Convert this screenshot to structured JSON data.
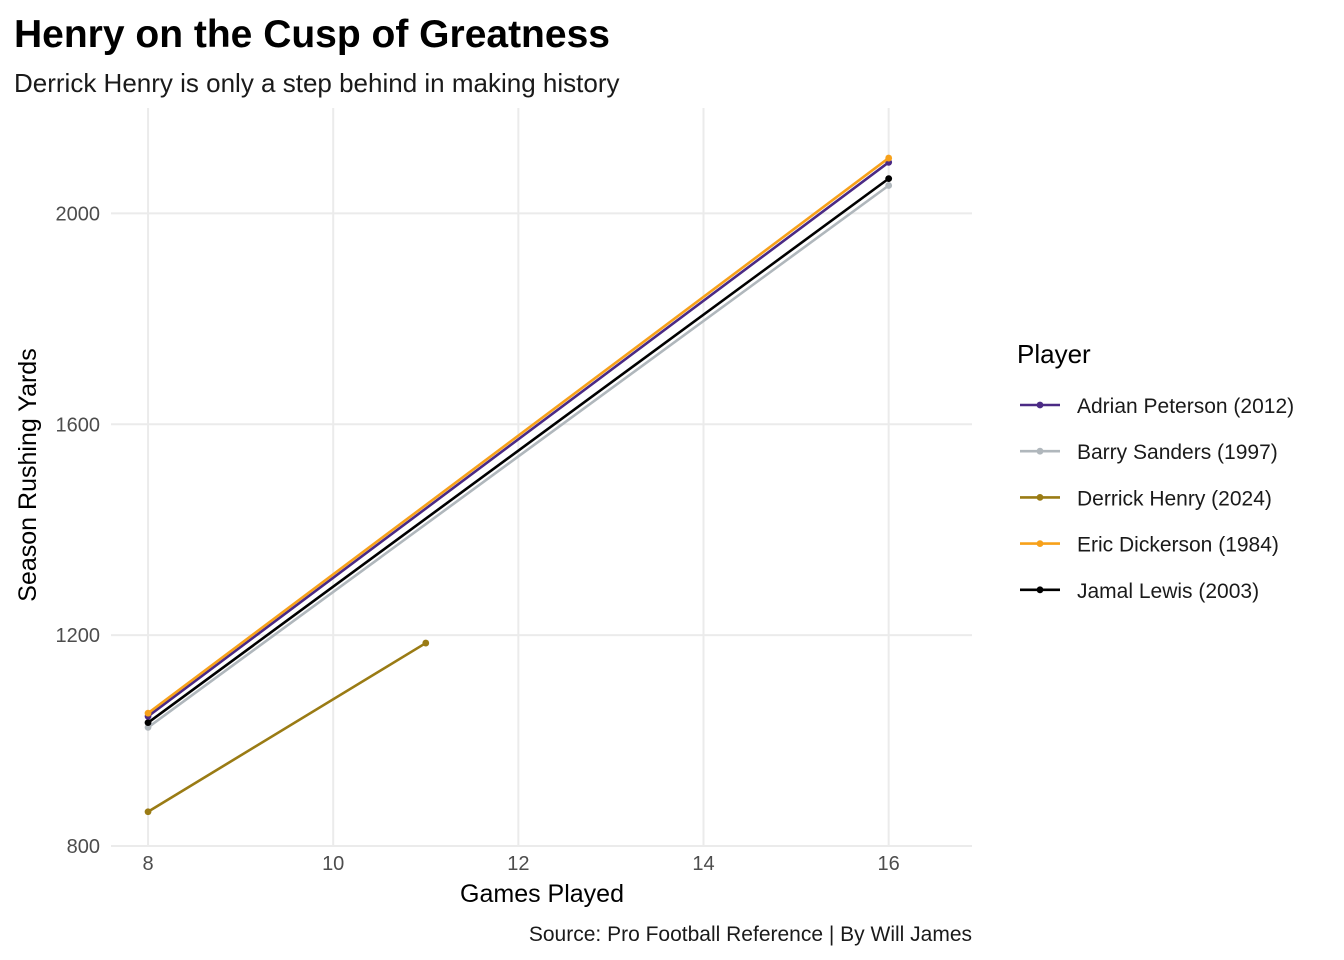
{
  "chart_data": {
    "type": "line",
    "title": "Henry on the Cusp of Greatness",
    "subtitle": "Derrick Henry is only a step behind in making history",
    "xlabel": "Games Played",
    "ylabel": "Season Rushing Yards",
    "caption": "Source: Pro Football Reference | By Will James",
    "xlim": [
      7.6,
      16.9
    ],
    "ylim": [
      800,
      2200
    ],
    "xticks": [
      "8",
      "10",
      "12",
      "14",
      "16"
    ],
    "yticks": [
      "800",
      "1200",
      "1600",
      "2000"
    ],
    "grid": true,
    "legend": {
      "title": "Player",
      "position": "right"
    },
    "series": [
      {
        "name": "Adrian Peterson (2012)",
        "color": "#4B2A85",
        "x": [
          8,
          16
        ],
        "y": [
          1046,
          2097
        ]
      },
      {
        "name": "Barry Sanders (1997)",
        "color": "#B0B7BC",
        "x": [
          8,
          16
        ],
        "y": [
          1025,
          2053
        ]
      },
      {
        "name": "Derrick Henry (2024)",
        "color": "#9A7B14",
        "x": [
          8,
          11
        ],
        "y": [
          865,
          1185
        ]
      },
      {
        "name": "Eric Dickerson (1984)",
        "color": "#F7A11A",
        "x": [
          8,
          16
        ],
        "y": [
          1052,
          2105
        ]
      },
      {
        "name": "Jamal Lewis (2003)",
        "color": "#000000",
        "x": [
          8,
          16
        ],
        "y": [
          1034,
          2066
        ]
      }
    ],
    "draw_order": [
      2,
      1,
      4,
      0,
      3
    ]
  }
}
